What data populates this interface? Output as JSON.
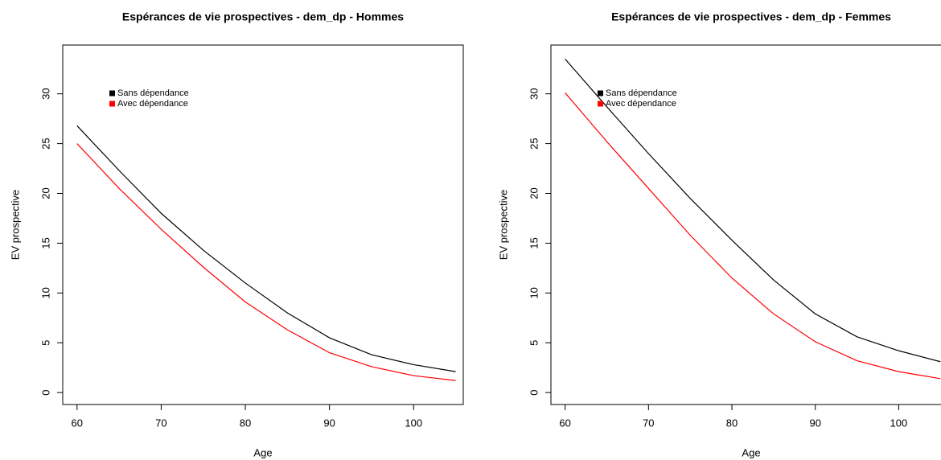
{
  "chart_data": [
    {
      "type": "line",
      "title": "Espérances de vie prospectives - dem_dp - Hommes",
      "x_label": "Age",
      "y_label": "EV prospective",
      "x": [
        60,
        65,
        70,
        75,
        80,
        85,
        90,
        95,
        100,
        105
      ],
      "series": [
        {
          "name": "Sans dépendance",
          "color": "#000000",
          "values": [
            26.8,
            22.3,
            18.0,
            14.3,
            11.0,
            8.0,
            5.5,
            3.8,
            2.8,
            2.1
          ]
        },
        {
          "name": "Avec dépendance",
          "color": "#ff0000",
          "values": [
            25.0,
            20.5,
            16.4,
            12.6,
            9.1,
            6.3,
            4.0,
            2.6,
            1.7,
            1.2
          ]
        }
      ],
      "xlim": [
        58.3,
        105.9
      ],
      "ylim": [
        -1.2,
        34.9
      ],
      "xticks": [
        60,
        70,
        80,
        90,
        100
      ],
      "yticks": [
        0,
        5,
        10,
        15,
        20,
        25,
        30
      ]
    },
    {
      "type": "line",
      "title": "Espérances de vie prospectives - dem_dp - Femmes",
      "x_label": "Age",
      "y_label": "EV prospective",
      "x": [
        60,
        65,
        70,
        75,
        80,
        85,
        90,
        95,
        100,
        105
      ],
      "series": [
        {
          "name": "Sans dépendance",
          "color": "#000000",
          "values": [
            33.5,
            28.7,
            24.0,
            19.5,
            15.3,
            11.3,
            7.9,
            5.6,
            4.2,
            3.1
          ]
        },
        {
          "name": "Avec dépendance",
          "color": "#ff0000",
          "values": [
            30.1,
            25.2,
            20.5,
            15.8,
            11.5,
            7.9,
            5.1,
            3.2,
            2.1,
            1.4
          ]
        }
      ],
      "xlim": [
        58.3,
        107.0
      ],
      "ylim": [
        -1.2,
        34.9
      ],
      "xticks": [
        60,
        70,
        80,
        90,
        100
      ],
      "yticks": [
        0,
        5,
        10,
        15,
        20,
        25,
        30
      ]
    }
  ]
}
